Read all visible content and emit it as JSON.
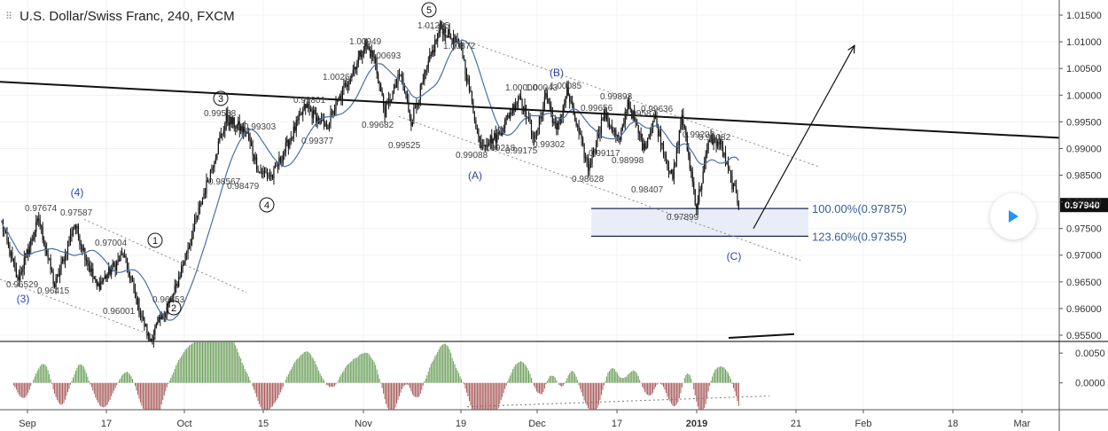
{
  "header": {
    "title": "U.S. Dollar/Swiss Franc, 240, FXCM"
  },
  "price_axis": {
    "labels": [
      "1.01500",
      "1.01000",
      "1.00500",
      "1.00000",
      "0.99500",
      "0.99000",
      "0.98500",
      "0.98000",
      "0.97500",
      "0.97000",
      "0.96500",
      "0.96000",
      "0.95500"
    ],
    "current_price": "0.97940"
  },
  "osc_axis": {
    "labels": [
      "0.0050",
      "0.0000"
    ]
  },
  "time_axis": {
    "labels": [
      "Sep",
      "17",
      "Oct",
      "15",
      "Nov",
      "19",
      "Dec",
      "17",
      "2019",
      "21",
      "Feb",
      "18",
      "Mar"
    ]
  },
  "targets": [
    {
      "label": "100.00%(0.97875)",
      "value": 0.97875
    },
    {
      "label": "123.60%(0.97355)",
      "value": 0.97355
    }
  ],
  "wave_labels": {
    "impulse": [
      "1",
      "2",
      "3",
      "4",
      "5"
    ],
    "minor": [
      "(3)",
      "(4)"
    ],
    "corrective": [
      "(A)",
      "(B)",
      "(C)"
    ]
  },
  "price_annotations": [
    "0.96529",
    "0.97674",
    "0.97587",
    "0.96415",
    "0.96001",
    "0.97004",
    "0.96253",
    "0.99558",
    "0.99303",
    "0.98567",
    "0.98479",
    "0.99801",
    "0.99377",
    "1.00267",
    "1.00949",
    "1.00693",
    "0.99682",
    "0.99525",
    "1.01285",
    "1.00872",
    "1.00000",
    "1.00043",
    "1.00085",
    "0.99218",
    "0.99088",
    "0.99175",
    "0.99302",
    "0.99656",
    "0.99893",
    "0.99587",
    "0.99636",
    "0.99202",
    "0.99082",
    "0.99117",
    "0.98998",
    "0.98628",
    "0.98407",
    "0.97899"
  ],
  "colors": {
    "grid": "#eef1f5",
    "candle": "#111111",
    "ma": "#4a6fa5",
    "channel": "#8a8a8a",
    "trendline": "#111111",
    "wave_blue": "#3344a8",
    "target_text": "#3a5e98",
    "target_fill": "#e8eef8",
    "osc_up": "#6b9e5a",
    "osc_down": "#a85a5a",
    "play": "#2196f3"
  },
  "chart_data": {
    "type": "candlestick",
    "y_range": [
      0.954,
      1.0175
    ],
    "osc_range": [
      -0.0045,
      0.0068
    ],
    "price_scale": "linear",
    "current_price": 0.9794,
    "key_points": [
      {
        "t": 0,
        "v": 0.976
      },
      {
        "t": 12,
        "v": 0.96529
      },
      {
        "t": 28,
        "v": 0.97674
      },
      {
        "t": 40,
        "v": 0.96415
      },
      {
        "t": 55,
        "v": 0.97587
      },
      {
        "t": 72,
        "v": 0.96401
      },
      {
        "t": 92,
        "v": 0.97004
      },
      {
        "t": 104,
        "v": 0.96001
      },
      {
        "t": 112,
        "v": 0.954
      },
      {
        "t": 130,
        "v": 0.96253
      },
      {
        "t": 170,
        "v": 0.99558
      },
      {
        "t": 185,
        "v": 0.99303
      },
      {
        "t": 195,
        "v": 0.98567
      },
      {
        "t": 205,
        "v": 0.98479
      },
      {
        "t": 230,
        "v": 0.99801
      },
      {
        "t": 245,
        "v": 0.99377
      },
      {
        "t": 262,
        "v": 1.00267
      },
      {
        "t": 275,
        "v": 1.00949
      },
      {
        "t": 282,
        "v": 1.00693
      },
      {
        "t": 290,
        "v": 0.99682
      },
      {
        "t": 302,
        "v": 1.004
      },
      {
        "t": 310,
        "v": 0.99525
      },
      {
        "t": 332,
        "v": 1.01285
      },
      {
        "t": 348,
        "v": 1.00872
      },
      {
        "t": 362,
        "v": 0.99088
      },
      {
        "t": 375,
        "v": 0.99218
      },
      {
        "t": 392,
        "v": 1.0
      },
      {
        "t": 404,
        "v": 0.99175
      },
      {
        "t": 412,
        "v": 1.00043
      },
      {
        "t": 420,
        "v": 0.99302
      },
      {
        "t": 428,
        "v": 1.00085
      },
      {
        "t": 444,
        "v": 0.98628
      },
      {
        "t": 456,
        "v": 0.99656
      },
      {
        "t": 468,
        "v": 0.99117
      },
      {
        "t": 474,
        "v": 0.99893
      },
      {
        "t": 486,
        "v": 0.98998
      },
      {
        "t": 494,
        "v": 0.99587
      },
      {
        "t": 508,
        "v": 0.98407
      },
      {
        "t": 515,
        "v": 0.99636
      },
      {
        "t": 526,
        "v": 0.97899
      },
      {
        "t": 536,
        "v": 0.99202
      },
      {
        "t": 544,
        "v": 0.99082
      },
      {
        "t": 558,
        "v": 0.9794
      }
    ],
    "trendline": [
      {
        "x": 0,
        "y": 1.0025
      },
      {
        "x": 1195,
        "y": 0.992
      }
    ],
    "channel_upper": [
      {
        "x": 478,
        "y": 1.013
      },
      {
        "x": 925,
        "y": 0.9865
      }
    ],
    "channel_lower": [
      {
        "x": 450,
        "y": 0.996
      },
      {
        "x": 903,
        "y": 0.969
      }
    ],
    "wave1_channel_upper": [
      {
        "x": 95,
        "y": 0.9767
      },
      {
        "x": 278,
        "y": 0.963
      }
    ],
    "wave1_channel_lower": [
      {
        "x": 0,
        "y": 0.9655
      },
      {
        "x": 175,
        "y": 0.9548
      }
    ],
    "target_zone": {
      "x_from": 667,
      "x_to": 912
    },
    "projection_arrow": [
      {
        "x": 850,
        "y": 0.975
      },
      {
        "x": 964,
        "y": 1.0093
      }
    ],
    "bottom_line": [
      {
        "x": 822,
        "y": 0.9545
      },
      {
        "x": 896,
        "y": 0.9552
      }
    ],
    "osc_support": [
      {
        "x": 527,
        "y": -0.004
      },
      {
        "x": 868,
        "y": -0.0022
      }
    ]
  }
}
